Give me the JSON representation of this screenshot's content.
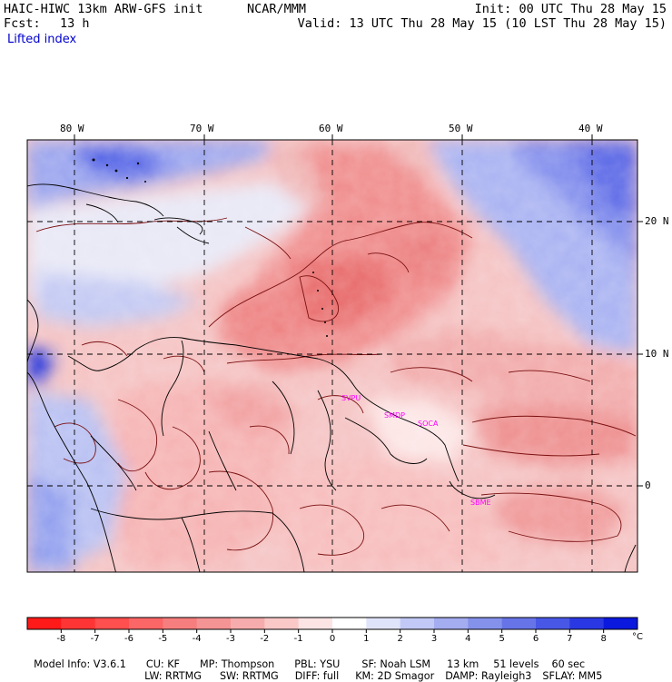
{
  "header": {
    "model": "HAIC-HIWC 13km ARW-GFS init",
    "center": "NCAR/MMM",
    "init": "Init: 00 UTC Thu 28 May 15",
    "fcst_label": "Fcst:",
    "fcst_value": "13 h",
    "valid": "Valid: 13 UTC Thu 28 May 15 (10 LST Thu 28 May 15)",
    "field": "Lifted index"
  },
  "map": {
    "lon_labels": [
      "80 W",
      "70 W",
      "60 W",
      "50 W",
      "40 W"
    ],
    "lat_labels": [
      "20 N",
      "10 N",
      "0"
    ],
    "station_labels": [
      "SVPU",
      "SMDP",
      "SOCA",
      "SBME"
    ],
    "colors": {
      "label": "#ff00ff",
      "grid": "#000000",
      "outline": "#000000"
    }
  },
  "colorbar": {
    "ticks": [
      "-8",
      "-7",
      "-6",
      "-5",
      "-4",
      "-3",
      "-2",
      "-1",
      "0",
      "1",
      "2",
      "3",
      "4",
      "5",
      "6",
      "7",
      "8"
    ],
    "unit": "°C",
    "colors": [
      "#ff1a1a",
      "#ff3535",
      "#ff4f4f",
      "#fb6666",
      "#f77e7e",
      "#f59494",
      "#f6acac",
      "#fbc8c8",
      "#fde4e4",
      "#ffffff",
      "#dfe4fa",
      "#c2c9f6",
      "#a4adf0",
      "#8592ec",
      "#6774e8",
      "#4957e6",
      "#2a38e3",
      "#0b18dd"
    ]
  },
  "footer": {
    "line1": [
      "Model Info: V3.6.1",
      "CU: KF",
      "MP: Thompson",
      "PBL: YSU",
      "SF: Noah LSM",
      "13 km",
      "51 levels",
      "60 sec"
    ],
    "line2": [
      "LW: RRTMG",
      "SW: RRTMG",
      "DIFF: full",
      "KM: 2D Smagor",
      "DAMP: Rayleigh3",
      "SFLAY: MM5"
    ]
  }
}
